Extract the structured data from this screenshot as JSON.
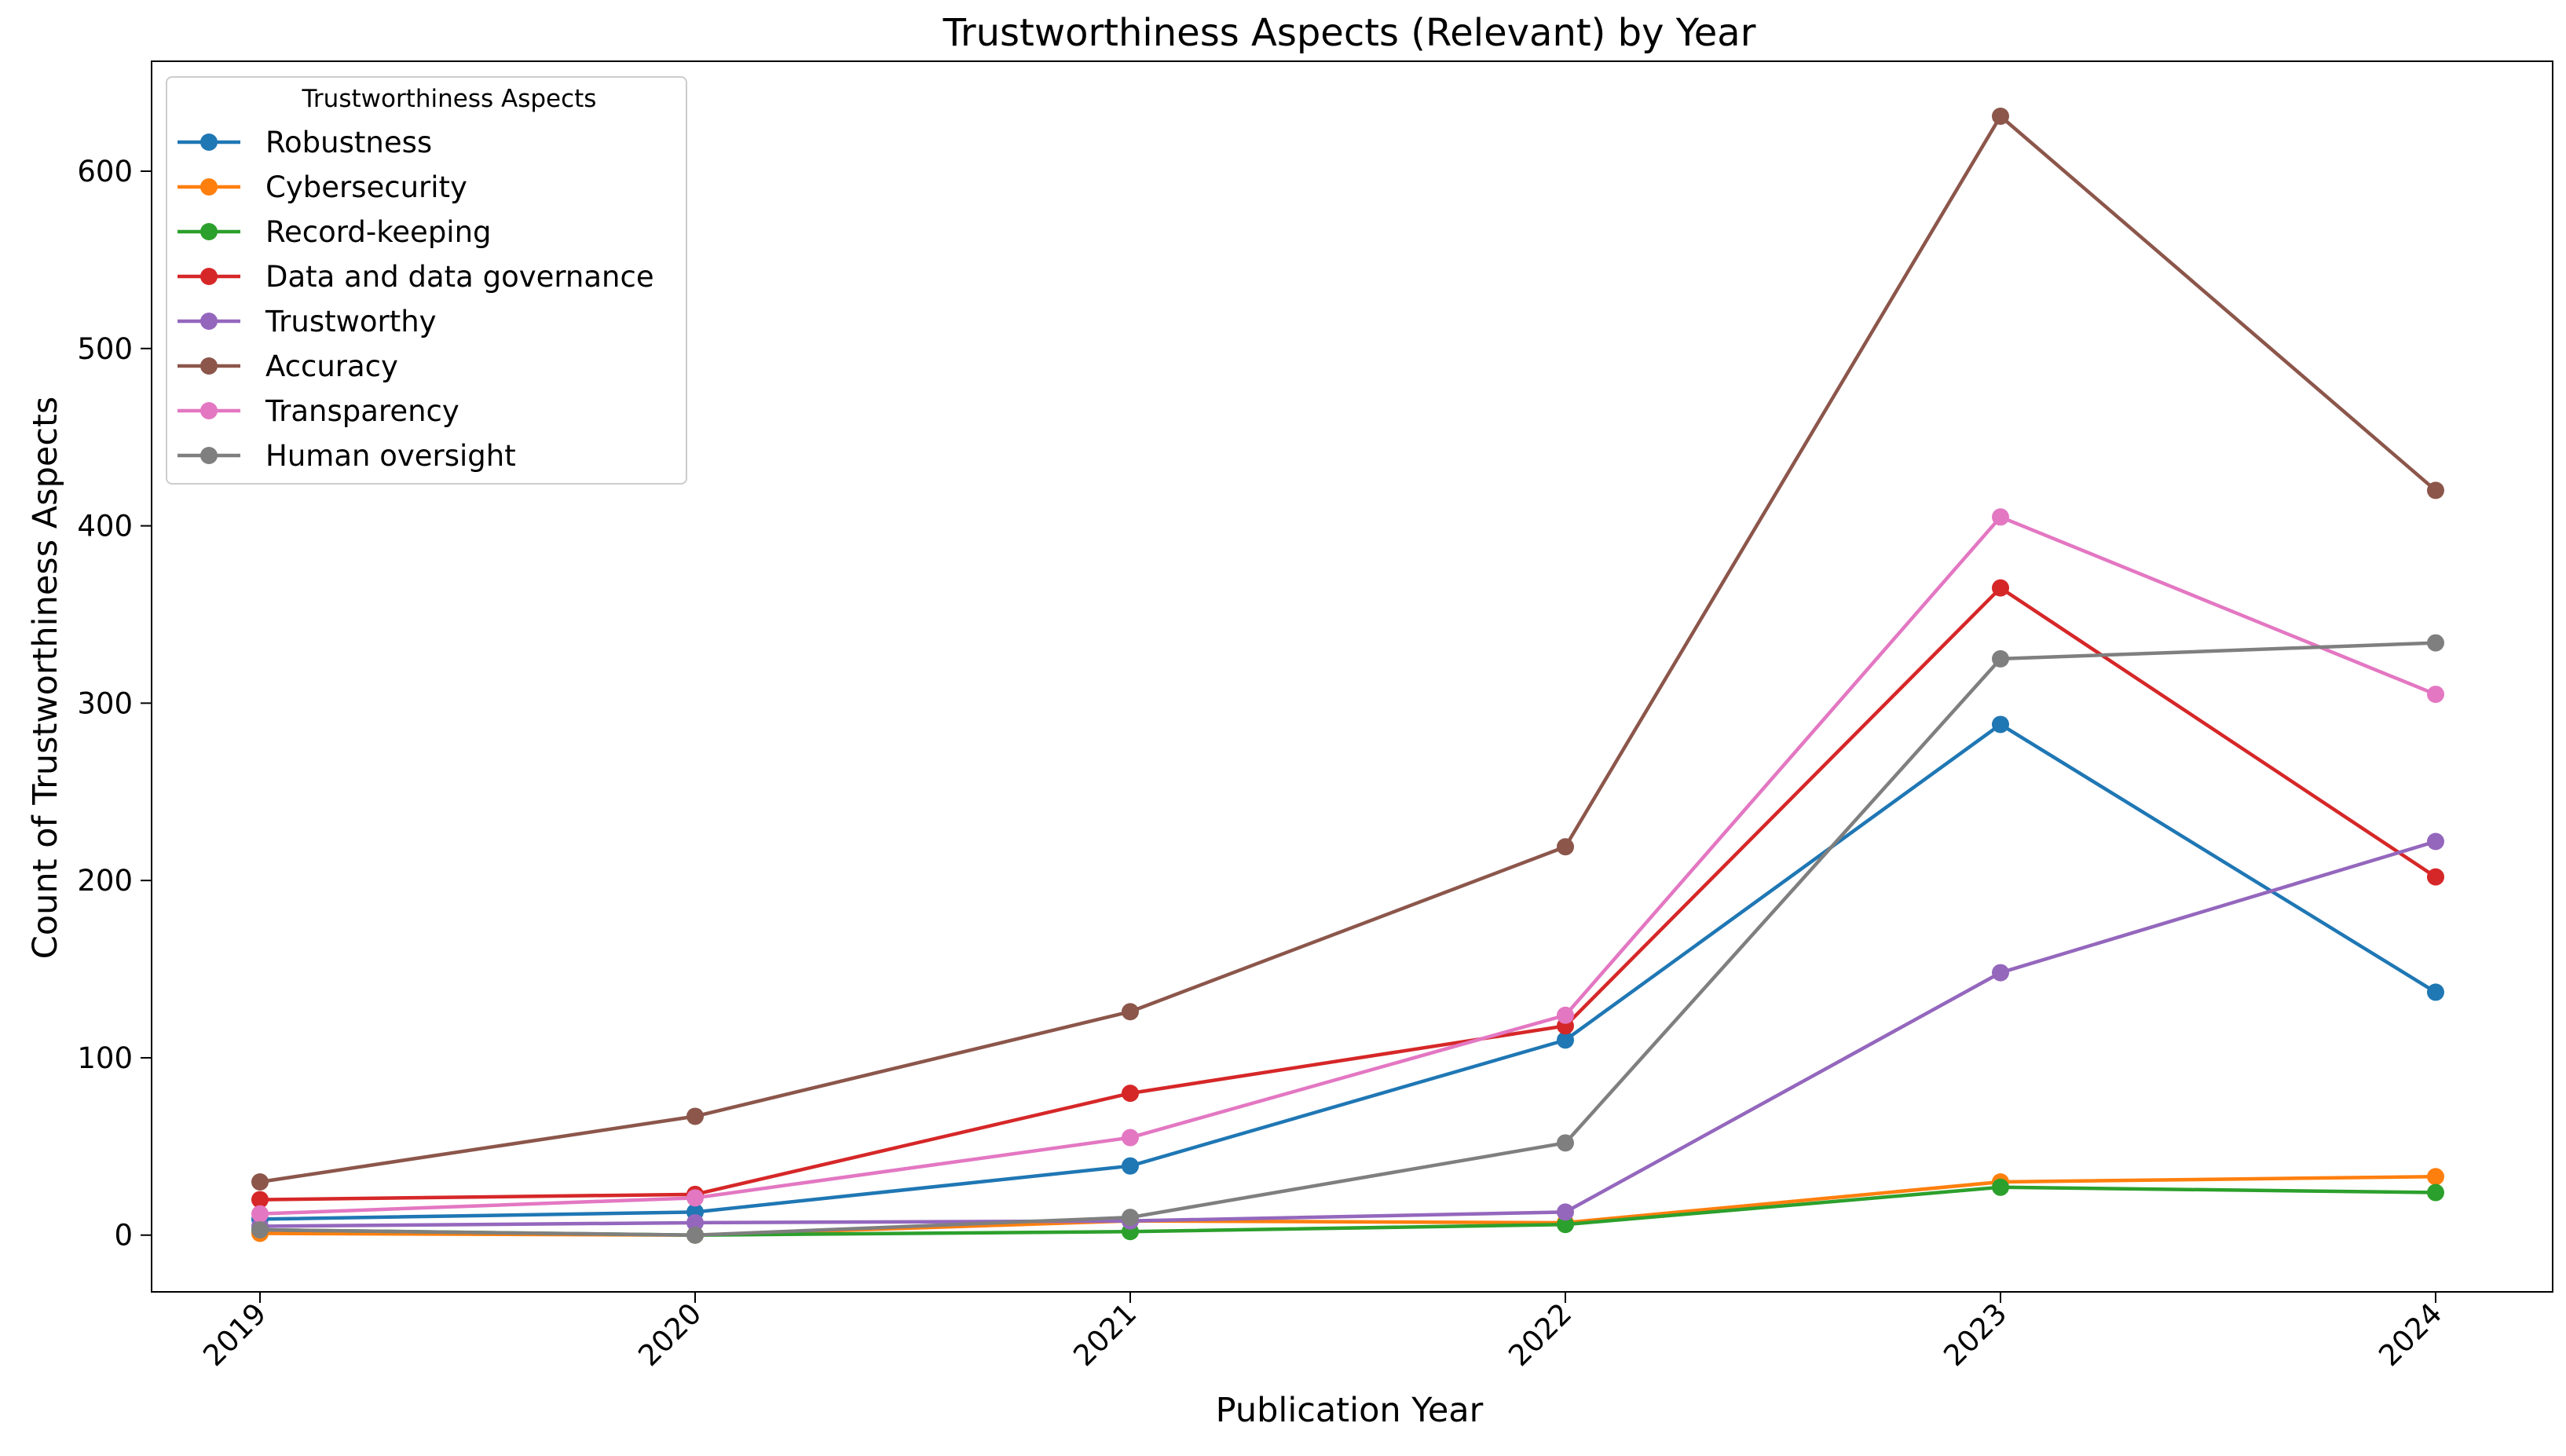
{
  "chart_data": {
    "type": "line",
    "title": "Trustworthiness Aspects (Relevant) by Year",
    "xlabel": "Publication Year",
    "ylabel": "Count of Trustworthiness Aspects",
    "categories": [
      "2019",
      "2020",
      "2021",
      "2022",
      "2023",
      "2024"
    ],
    "ylim": [
      -32,
      662
    ],
    "yticks": [
      0,
      100,
      200,
      300,
      400,
      500,
      600
    ],
    "grid": false,
    "legend_title": "Trustworthiness Aspects",
    "legend_position": "top-left",
    "series": [
      {
        "name": "Robustness",
        "color": "#1f77b4",
        "values": [
          9,
          13,
          39,
          110,
          288,
          137
        ]
      },
      {
        "name": "Cybersecurity",
        "color": "#ff7f0e",
        "values": [
          1,
          0,
          8,
          7,
          30,
          33
        ]
      },
      {
        "name": "Record-keeping",
        "color": "#2ca02c",
        "values": [
          3,
          0,
          2,
          6,
          27,
          24
        ]
      },
      {
        "name": "Data and data governance",
        "color": "#d62728",
        "values": [
          20,
          23,
          80,
          118,
          365,
          202
        ]
      },
      {
        "name": "Trustworthy",
        "color": "#9467bd",
        "values": [
          5,
          7,
          8,
          13,
          148,
          222
        ]
      },
      {
        "name": "Accuracy",
        "color": "#8c564b",
        "values": [
          30,
          67,
          126,
          219,
          631,
          420
        ]
      },
      {
        "name": "Transparency",
        "color": "#e377c2",
        "values": [
          12,
          21,
          55,
          124,
          405,
          305
        ]
      },
      {
        "name": "Human oversight",
        "color": "#7f7f7f",
        "values": [
          3,
          0,
          10,
          52,
          325,
          334
        ]
      }
    ]
  }
}
